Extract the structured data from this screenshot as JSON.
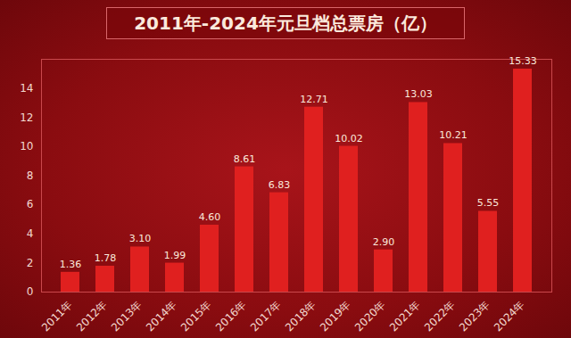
{
  "chart_data": {
    "type": "bar",
    "title": "2011年-2024年元旦档总票房（亿）",
    "categories": [
      "2011年",
      "2012年",
      "2013年",
      "2014年",
      "2015年",
      "2016年",
      "2017年",
      "2018年",
      "2019年",
      "2020年",
      "2021年",
      "2022年",
      "2023年",
      "2024年"
    ],
    "values": [
      1.36,
      1.78,
      3.1,
      1.99,
      4.6,
      8.61,
      6.83,
      12.71,
      10.02,
      2.9,
      13.03,
      10.21,
      5.55,
      15.33
    ],
    "value_labels": [
      "1.36",
      "1.78",
      "3.10",
      "1.99",
      "4.60",
      "8.61",
      "6.83",
      "12.71",
      "10.02",
      "2.90",
      "13.03",
      "10.21",
      "5.55",
      "15.33"
    ],
    "color": "#e0201f",
    "ylim": [
      0,
      16
    ],
    "yticks": [
      0,
      2,
      4,
      6,
      8,
      10,
      12,
      14
    ],
    "grid": false,
    "data_labels": true
  }
}
